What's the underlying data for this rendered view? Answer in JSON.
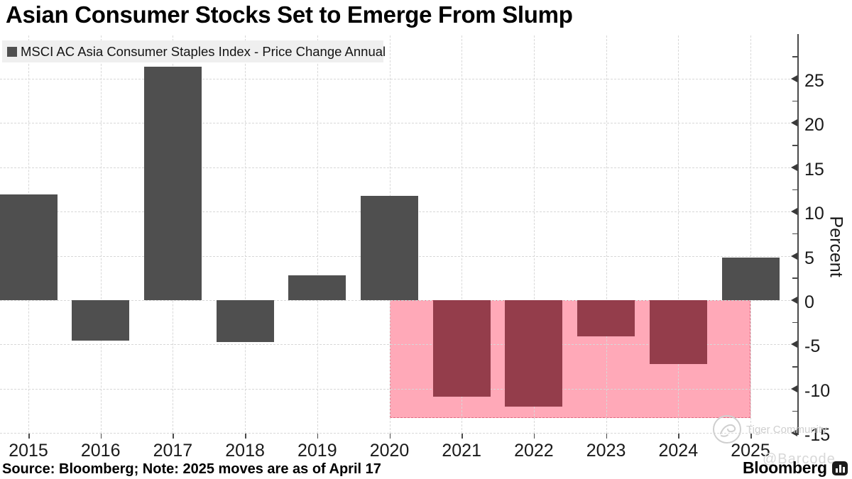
{
  "title": "Asian Consumer Stocks Set to Emerge From Slump",
  "legend": {
    "label": "MSCI AC Asia Consumer Staples Index - Price Change Annual",
    "swatch_color": "#4f4f4f"
  },
  "source_note": "Source: Bloomberg; Note: 2025 moves are as of April 17",
  "branding": {
    "logo_text": "Bloomberg"
  },
  "watermarks": {
    "community": "Tiger Community",
    "handle": "@Barcode"
  },
  "colors": {
    "bar_dark": "#4f4f4f",
    "bar_negative": "#943d4b",
    "slump_fill": "#ffa9b8",
    "slump_border": "#e06a80",
    "grid": "#d8d8d8",
    "legend_bg": "#efefef",
    "watermark": "#cfcfcf"
  },
  "chart_data": {
    "type": "bar",
    "title": "Asian Consumer Stocks Set to Emerge From Slump",
    "series_name": "MSCI AC Asia Consumer Staples Index - Price Change Annual",
    "categories": [
      "2015",
      "2016",
      "2017",
      "2018",
      "2019",
      "2020",
      "2021",
      "2022",
      "2023",
      "2024",
      "2025"
    ],
    "values": [
      11.9,
      -4.6,
      26.4,
      -4.7,
      2.8,
      11.8,
      -10.9,
      -12.0,
      -4.1,
      -7.2,
      4.8
    ],
    "bar_colors": [
      "dark",
      "dark",
      "dark",
      "dark",
      "dark",
      "dark",
      "negative",
      "negative",
      "negative",
      "negative",
      "dark"
    ],
    "xlabel": "",
    "ylabel": "Percent",
    "ylim": [
      -15,
      30
    ],
    "y_major_ticks": [
      25,
      20,
      15,
      10,
      5,
      0,
      -5,
      -10,
      -15
    ],
    "y_minor_ticks": [
      27.5,
      22.5,
      17.5,
      12.5,
      7.5,
      2.5,
      -2.5,
      -7.5,
      -12.5
    ],
    "grid": true,
    "legend_position": "top-left",
    "y_axis_side": "right",
    "highlight_region": {
      "x_from": "2020",
      "x_to": "2025",
      "y_from": 0,
      "y_to": -13.3
    }
  }
}
